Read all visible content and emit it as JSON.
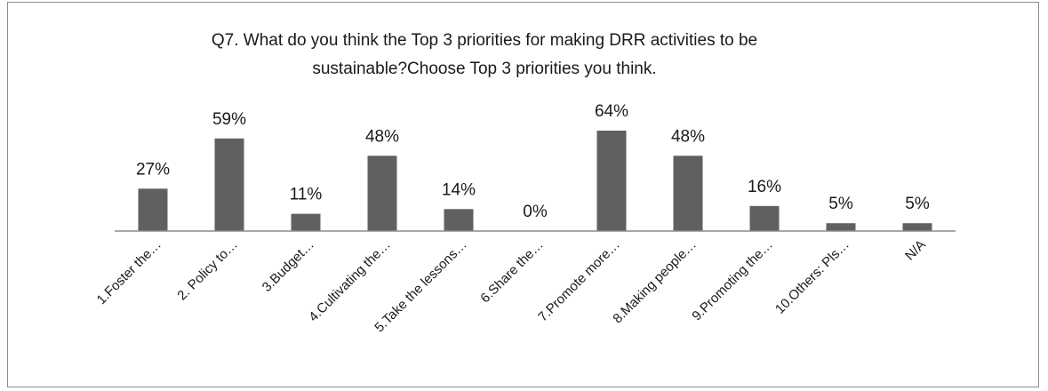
{
  "chart_data": {
    "type": "bar",
    "title_lines": [
      "Q7.  What do you think the Top 3 priorities for making DRR activities to be",
      "sustainable?Choose Top 3 priorities you think."
    ],
    "categories": [
      "1.Foster the…",
      "2. Policy to…",
      "3.Budget…",
      "4.Cultivating the…",
      "5.Take the lessons…",
      "6.Share the…",
      "7.Promote more…",
      "8.Making people…",
      "9.Promoting  the…",
      "10.Others: Pls…",
      "N/A"
    ],
    "values": [
      27,
      59,
      11,
      48,
      14,
      0,
      64,
      48,
      16,
      5,
      5
    ],
    "data_labels": [
      "27%",
      "59%",
      "11%",
      "48%",
      "14%",
      "0%",
      "64%",
      "48%",
      "16%",
      "5%",
      "5%"
    ],
    "ylim": [
      0,
      64
    ],
    "bar_color": "#606060",
    "axis_color": "#8c8c8c",
    "gridlines": false,
    "legend": false
  }
}
